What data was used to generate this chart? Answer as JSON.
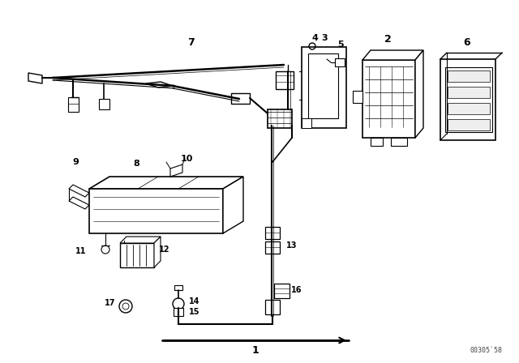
{
  "bg_color": "#ffffff",
  "lc": "#000000",
  "watermark": "00305`58",
  "figsize": [
    6.4,
    4.48
  ],
  "dpi": 100
}
